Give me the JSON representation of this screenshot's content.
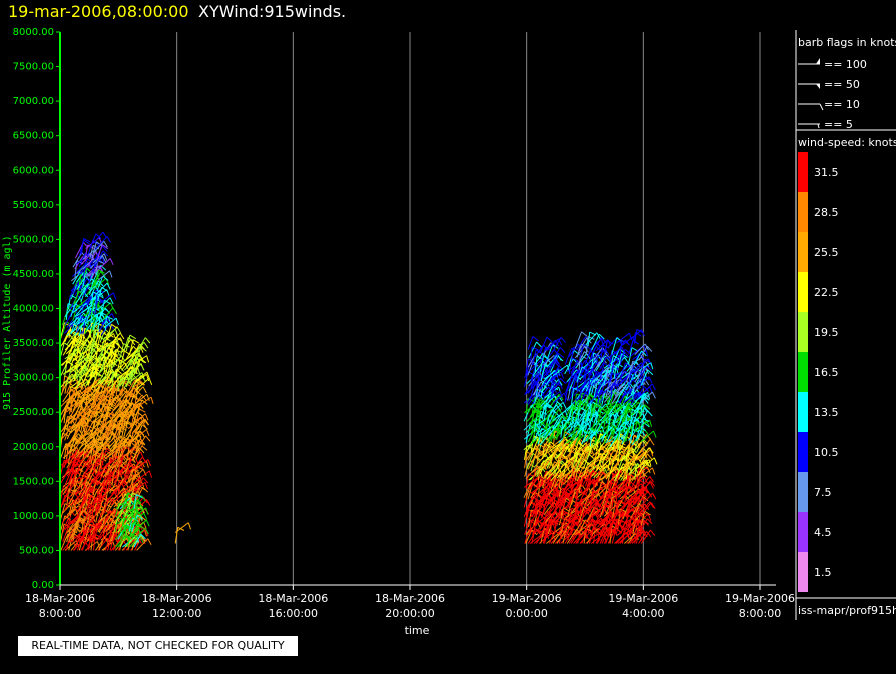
{
  "header": {
    "timestamp": "19-mar-2006,08:00:00",
    "plot_name": "XYWind:915winds."
  },
  "footer": {
    "qc_note": "REAL-TIME DATA, NOT CHECKED FOR QUALITY"
  },
  "legend": {
    "barb_title": "barb flags in knots",
    "barb_items": [
      "== 100",
      "== 50",
      "== 10",
      "== 5"
    ],
    "speed_title": "wind-speed: knots",
    "speed_bins": [
      {
        "label": "31.5",
        "color": "#ff0000"
      },
      {
        "label": "28.5",
        "color": "#ff8800"
      },
      {
        "label": "25.5",
        "color": "#ffaa00"
      },
      {
        "label": "22.5",
        "color": "#ffff00"
      },
      {
        "label": "19.5",
        "color": "#aaff22"
      },
      {
        "label": "16.5",
        "color": "#00dd00"
      },
      {
        "label": "13.5",
        "color": "#00ffff"
      },
      {
        "label": "10.5",
        "color": "#0000ff"
      },
      {
        "label": "7.5",
        "color": "#6699ee"
      },
      {
        "label": "4.5",
        "color": "#9933ff"
      },
      {
        "label": "1.5",
        "color": "#ee88ee"
      }
    ],
    "source": "iss-mapr/prof915h"
  },
  "chart_data": {
    "type": "scatter",
    "ylabel": "915 Profiler Altitude (m agl)",
    "xlabel": "time",
    "ylim": [
      0,
      8000
    ],
    "xlim": [
      "2006-03-18 08:00",
      "2006-03-19 08:00"
    ],
    "y_ticks": [
      "0.00",
      "500.00",
      "1000.00",
      "1500.00",
      "2000.00",
      "2500.00",
      "3000.00",
      "3500.00",
      "4000.00",
      "4500.00",
      "5000.00",
      "5500.00",
      "6000.00",
      "6500.00",
      "7000.00",
      "7500.00",
      "8000.00"
    ],
    "x_ticks": [
      {
        "hours": 0,
        "date": "18-Mar-2006",
        "time": "8:00:00"
      },
      {
        "hours": 4,
        "date": "18-Mar-2006",
        "time": "12:00:00"
      },
      {
        "hours": 8,
        "date": "18-Mar-2006",
        "time": "16:00:00"
      },
      {
        "hours": 12,
        "date": "18-Mar-2006",
        "time": "20:00:00"
      },
      {
        "hours": 16,
        "date": "19-Mar-2006",
        "time": "0:00:00"
      },
      {
        "hours": 20,
        "date": "19-Mar-2006",
        "time": "4:00:00"
      },
      {
        "hours": 24,
        "date": "19-Mar-2006",
        "time": "8:00:00"
      }
    ],
    "grid": true,
    "legend_position": "right",
    "color_scale": "wind speed (knots)"
  }
}
